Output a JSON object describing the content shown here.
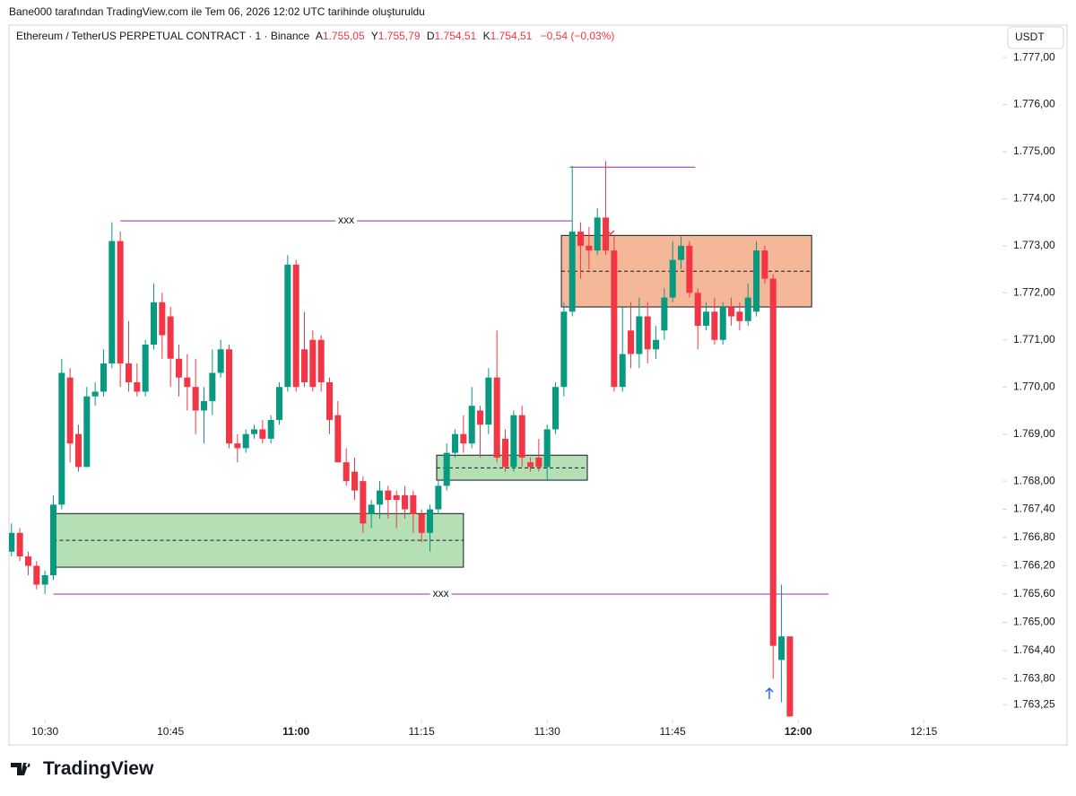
{
  "header": "Bane000 tarafından TradingView.com ile Tem 06, 2026 12:02 UTC tarihinde oluşturuldu",
  "brand": "TradingView",
  "chart_data": {
    "type": "candlestick",
    "title": "Ethereum / TetherUS PERPETUAL CONTRACT · 1 · Binance",
    "legend": [
      {
        "key": "A",
        "value": "1.755,05"
      },
      {
        "key": "Y",
        "value": "1.755,79"
      },
      {
        "key": "D",
        "value": "1.754,51"
      },
      {
        "key": "K",
        "value": "1.754,51"
      }
    ],
    "change": "−0,54 (−0,03%)",
    "currency": "USDT",
    "up_color": "#089981",
    "down_color": "#f23645",
    "x": [
      626,
      627,
      628,
      629,
      630,
      631,
      632,
      633,
      634,
      635,
      636,
      637,
      638,
      639,
      640,
      641,
      642,
      643,
      644,
      645,
      646,
      647,
      648,
      649,
      650,
      651,
      652,
      653,
      654,
      655,
      656,
      657,
      658,
      659,
      660,
      661,
      662,
      663,
      664,
      665,
      666,
      667,
      668,
      669,
      670,
      671,
      672,
      673,
      674,
      675,
      676,
      677,
      678,
      679,
      680,
      681,
      682,
      683,
      684,
      685,
      686,
      687,
      688,
      689,
      690,
      691,
      692,
      693,
      694,
      695,
      696,
      697,
      698,
      699,
      700,
      701,
      702,
      703,
      704,
      705,
      706,
      707,
      708,
      709,
      710,
      711,
      712,
      713,
      714,
      715,
      716,
      717,
      718,
      719
    ],
    "open": [
      1766.5,
      1766.9,
      1766.4,
      1766.2,
      1765.8,
      1766.0,
      1767.5,
      1770.2,
      1769.0,
      1768.3,
      1769.8,
      1769.9,
      1770.5,
      1773.1,
      1770.5,
      1770.1,
      1769.9,
      1770.9,
      1771.8,
      1771.5,
      1770.6,
      1770.2,
      1770.0,
      1769.5,
      1769.7,
      1770.3,
      1770.8,
      1768.8,
      1768.7,
      1769.0,
      1769.1,
      1768.9,
      1769.3,
      1770.0,
      1772.6,
      1770.8,
      1771.0,
      1771.0,
      1770.1,
      1769.4,
      1768.4,
      1768.2,
      1768.0,
      1767.3,
      1767.5,
      1767.8,
      1767.7,
      1767.7,
      1767.7,
      1767.3,
      1766.9,
      1767.4,
      1767.9,
      1768.6,
      1769.0,
      1768.8,
      1769.5,
      1769.2,
      1770.2,
      1768.9,
      1768.3,
      1769.4,
      1768.4,
      1768.5,
      1768.3,
      1769.1,
      1770.0,
      1771.6,
      1773.3,
      1773.0,
      1772.9,
      1773.6,
      1772.9,
      1770.0,
      1771.2,
      1770.7,
      1771.5,
      1770.8,
      1771.2,
      1771.9,
      1772.7,
      1773.0,
      1772.0,
      1771.3,
      1771.6,
      1771.0,
      1771.7,
      1771.6,
      1771.4,
      1771.6,
      1772.9,
      1772.3,
      1764.2,
      1764.7
    ],
    "high": [
      1767.1,
      1767.0,
      1766.5,
      1766.3,
      1766.1,
      1767.7,
      1770.6,
      1770.4,
      1769.2,
      1770.0,
      1770.1,
      1770.8,
      1773.5,
      1773.3,
      1771.4,
      1770.5,
      1771.0,
      1772.2,
      1772.0,
      1771.7,
      1770.9,
      1770.7,
      1770.6,
      1770.0,
      1770.8,
      1771.0,
      1770.9,
      1769.0,
      1769.1,
      1769.2,
      1769.3,
      1769.4,
      1770.1,
      1772.8,
      1772.7,
      1771.6,
      1771.2,
      1771.1,
      1770.2,
      1769.7,
      1768.7,
      1768.5,
      1768.1,
      1767.6,
      1768.0,
      1767.9,
      1767.8,
      1767.9,
      1767.8,
      1767.4,
      1767.5,
      1768.0,
      1768.8,
      1769.1,
      1769.4,
      1770.0,
      1769.6,
      1770.4,
      1771.2,
      1769.1,
      1769.5,
      1769.6,
      1768.5,
      1768.9,
      1769.2,
      1770.1,
      1771.8,
      1774.7,
      1773.5,
      1773.4,
      1773.8,
      1774.8,
      1773.2,
      1771.7,
      1771.8,
      1771.9,
      1771.8,
      1771.3,
      1772.1,
      1773.1,
      1773.2,
      1773.1,
      1772.1,
      1771.8,
      1771.9,
      1771.8,
      1771.9,
      1771.8,
      1772.2,
      1773.1,
      1773.0,
      1772.4,
      1765.8,
      1764.7
    ],
    "low": [
      1766.4,
      1766.3,
      1766.0,
      1765.7,
      1765.6,
      1765.9,
      1767.4,
      1768.4,
      1768.2,
      1768.3,
      1769.6,
      1769.8,
      1770.4,
      1770.0,
      1769.9,
      1769.8,
      1769.8,
      1770.8,
      1770.6,
      1770.0,
      1769.8,
      1769.5,
      1769.0,
      1768.8,
      1769.4,
      1770.2,
      1768.7,
      1768.4,
      1768.6,
      1768.9,
      1768.8,
      1768.8,
      1769.2,
      1769.9,
      1769.9,
      1770.0,
      1769.9,
      1769.9,
      1769.0,
      1768.4,
      1767.9,
      1767.6,
      1766.9,
      1767.0,
      1767.2,
      1767.2,
      1767.0,
      1767.2,
      1766.9,
      1766.7,
      1766.5,
      1767.3,
      1767.8,
      1768.5,
      1768.6,
      1768.7,
      1768.5,
      1769.0,
      1768.4,
      1768.2,
      1768.2,
      1768.3,
      1768.2,
      1768.2,
      1768.0,
      1769.0,
      1769.8,
      1771.5,
      1772.3,
      1772.5,
      1772.8,
      1772.8,
      1769.9,
      1769.9,
      1770.4,
      1770.4,
      1770.5,
      1770.6,
      1771.0,
      1771.8,
      1772.5,
      1771.9,
      1770.8,
      1771.2,
      1770.9,
      1770.9,
      1771.3,
      1771.2,
      1771.3,
      1771.5,
      1772.2,
      1763.8,
      1763.3,
      1763.0
    ],
    "close": [
      1766.9,
      1766.4,
      1766.2,
      1765.8,
      1766.0,
      1767.5,
      1770.3,
      1768.8,
      1768.3,
      1769.8,
      1769.9,
      1770.5,
      1773.1,
      1770.5,
      1770.1,
      1769.9,
      1770.9,
      1771.8,
      1771.1,
      1770.6,
      1770.2,
      1770.0,
      1769.5,
      1769.7,
      1770.3,
      1770.8,
      1768.8,
      1768.7,
      1769.0,
      1769.1,
      1768.9,
      1769.3,
      1770.0,
      1772.6,
      1770.0,
      1770.1,
      1770.0,
      1770.1,
      1769.3,
      1768.4,
      1768.0,
      1767.8,
      1767.1,
      1767.5,
      1767.8,
      1767.6,
      1767.6,
      1767.4,
      1767.3,
      1766.9,
      1767.4,
      1767.9,
      1768.6,
      1769.0,
      1768.8,
      1769.6,
      1769.2,
      1770.2,
      1768.5,
      1768.3,
      1769.4,
      1768.5,
      1768.3,
      1768.3,
      1769.1,
      1770.0,
      1771.6,
      1773.3,
      1773.0,
      1772.9,
      1773.6,
      1772.9,
      1770.0,
      1770.7,
      1770.7,
      1771.5,
      1770.8,
      1771.0,
      1771.9,
      1772.7,
      1773.0,
      1772.0,
      1771.3,
      1771.6,
      1771.0,
      1771.7,
      1771.5,
      1771.4,
      1771.9,
      1772.9,
      1772.3,
      1764.5,
      1764.7,
      1763.0
    ],
    "xlim": [
      625.7,
      744.4
    ],
    "xticks": [
      {
        "value": 630,
        "label": "10:30"
      },
      {
        "value": 645,
        "label": "10:45"
      },
      {
        "value": 660,
        "label": "11:00"
      },
      {
        "value": 675,
        "label": "11:15"
      },
      {
        "value": 690,
        "label": "11:30"
      },
      {
        "value": 705,
        "label": "11:45"
      },
      {
        "value": 720,
        "label": "12:00"
      },
      {
        "value": 735,
        "label": "12:15"
      }
    ],
    "bold_xticks": [
      660,
      720
    ],
    "ylim": [
      1762.93,
      1777.65
    ],
    "yticks": [
      {
        "value": 1777,
        "label": "1.777,00"
      },
      {
        "value": 1776,
        "label": "1.776,00"
      },
      {
        "value": 1775,
        "label": "1.775,00"
      },
      {
        "value": 1774,
        "label": "1.774,00"
      },
      {
        "value": 1773,
        "label": "1.773,00"
      },
      {
        "value": 1772,
        "label": "1.772,00"
      },
      {
        "value": 1771,
        "label": "1.771,00"
      },
      {
        "value": 1770,
        "label": "1.770,00"
      },
      {
        "value": 1769,
        "label": "1.769,00"
      },
      {
        "value": 1768,
        "label": "1.768,00"
      },
      {
        "value": 1767.4,
        "label": "1.767,40"
      },
      {
        "value": 1766.8,
        "label": "1.766,80"
      },
      {
        "value": 1766.2,
        "label": "1.766,20"
      },
      {
        "value": 1765.6,
        "label": "1.765,60"
      },
      {
        "value": 1765,
        "label": "1.765,00"
      },
      {
        "value": 1764.4,
        "label": "1.764,40"
      },
      {
        "value": 1763.8,
        "label": "1.763,80"
      },
      {
        "value": 1763.25,
        "label": "1.763,25"
      }
    ],
    "zones": [
      {
        "x": [
          631,
          680
        ],
        "y": [
          1766.17,
          1767.31
        ],
        "mid": 1766.74,
        "color": "#b5dfb4"
      },
      {
        "x": [
          676.8,
          694.8
        ],
        "y": [
          1768.02,
          1768.55
        ],
        "mid": 1768.28,
        "color": "#b5dfb4"
      },
      {
        "x": [
          691.7,
          721.6
        ],
        "y": [
          1771.7,
          1773.22
        ],
        "mid": 1772.46,
        "color": "#f4b899"
      }
    ],
    "line_color": "#9c27b0",
    "lines": [
      {
        "x": [
          639,
          693
        ],
        "y": 1773.53,
        "label": "xxx"
      },
      {
        "x": [
          631,
          723.6
        ],
        "y": 1765.6,
        "label": "xxx"
      },
      {
        "x": [
          692.7,
          707.7
        ],
        "y": 1774.67
      }
    ]
  }
}
